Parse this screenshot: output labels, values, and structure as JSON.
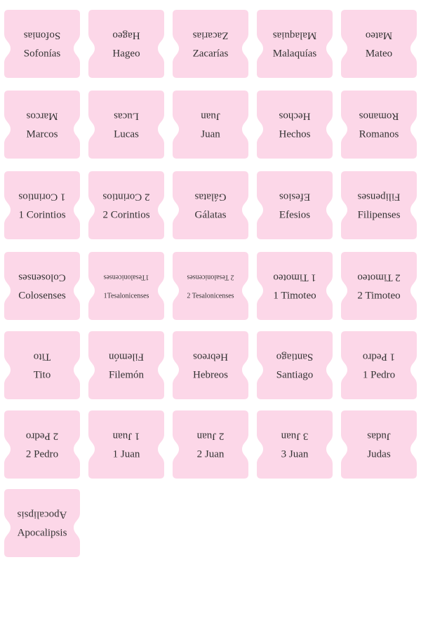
{
  "tabs": [
    {
      "top": "Sofonias",
      "bottom": "Sofonías"
    },
    {
      "top": "Hageo",
      "bottom": "Hageo"
    },
    {
      "top": "Zacarias",
      "bottom": "Zacarías"
    },
    {
      "top": "Malaquias",
      "bottom": "Malaquías"
    },
    {
      "top": "Mateo",
      "bottom": "Mateo"
    },
    {
      "top": "Marcos",
      "bottom": "Marcos"
    },
    {
      "top": "Lucas",
      "bottom": "Lucas"
    },
    {
      "top": "Juan",
      "bottom": "Juan"
    },
    {
      "top": "Hechos",
      "bottom": "Hechos"
    },
    {
      "top": "Romanos",
      "bottom": "Romanos"
    },
    {
      "top": "1 Corintios",
      "bottom": "1 Corintios"
    },
    {
      "top": "2 Corintios",
      "bottom": "2 Corintios"
    },
    {
      "top": "Gálatas",
      "bottom": "Gálatas"
    },
    {
      "top": "Efesios",
      "bottom": "Efesios"
    },
    {
      "top": "Filipenses",
      "bottom": "Filipenses"
    },
    {
      "top": "Colosenses",
      "bottom": "Colosenses"
    },
    {
      "top": "1Tesalonicenses",
      "bottom": "1Tesalonicenses"
    },
    {
      "top": "2 Tesalonicenses",
      "bottom": "2 Tesalonicenses"
    },
    {
      "top": "1 Timoteo",
      "bottom": "1 Timoteo"
    },
    {
      "top": "2 Timoteo",
      "bottom": "2 Timoteo"
    },
    {
      "top": "Tito",
      "bottom": "Tito"
    },
    {
      "top": "Filemón",
      "bottom": "Filemón"
    },
    {
      "top": "Hebreos",
      "bottom": "Hebreos"
    },
    {
      "top": "Santiago",
      "bottom": "Santiago"
    },
    {
      "top": "1 Pedro",
      "bottom": "1 Pedro"
    },
    {
      "top": "2 Pedro",
      "bottom": "2 Pedro"
    },
    {
      "top": "1 Juan",
      "bottom": "1 Juan"
    },
    {
      "top": "2 Juan",
      "bottom": "2 Juan"
    },
    {
      "top": "3 Juan",
      "bottom": "3 Juan"
    },
    {
      "top": "Judas",
      "bottom": "Judas"
    },
    {
      "top": "Apocalipsis",
      "bottom": "Apocalipsis"
    }
  ]
}
